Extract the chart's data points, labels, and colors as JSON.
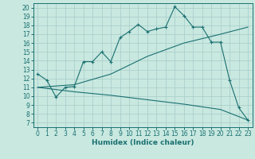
{
  "title": "",
  "xlabel": "Humidex (Indice chaleur)",
  "background_color": "#c8e8e0",
  "grid_color": "#a8ccc8",
  "line_color": "#1a7070",
  "xlim": [
    -0.5,
    23.5
  ],
  "ylim": [
    6.5,
    20.5
  ],
  "xticks": [
    0,
    1,
    2,
    3,
    4,
    5,
    6,
    7,
    8,
    9,
    10,
    11,
    12,
    13,
    14,
    15,
    16,
    17,
    18,
    19,
    20,
    21,
    22,
    23
  ],
  "yticks": [
    7,
    8,
    9,
    10,
    11,
    12,
    13,
    14,
    15,
    16,
    17,
    18,
    19,
    20
  ],
  "line1_x": [
    0,
    1,
    2,
    3,
    4,
    5,
    6,
    7,
    8,
    9,
    10,
    11,
    12,
    13,
    14,
    15,
    16,
    17,
    18,
    19,
    20,
    21,
    22,
    23
  ],
  "line1_y": [
    12.5,
    11.8,
    9.9,
    11.0,
    11.1,
    13.9,
    13.9,
    15.0,
    13.9,
    16.6,
    17.3,
    18.1,
    17.3,
    17.6,
    17.8,
    20.1,
    19.1,
    17.8,
    17.8,
    16.1,
    16.1,
    11.8,
    8.7,
    7.3
  ],
  "line2_x": [
    0,
    4,
    8,
    12,
    16,
    20,
    23
  ],
  "line2_y": [
    11.0,
    11.3,
    12.5,
    14.5,
    16.0,
    17.0,
    17.8
  ],
  "line3_x": [
    0,
    4,
    8,
    12,
    16,
    20,
    23
  ],
  "line3_y": [
    11.0,
    10.5,
    10.1,
    9.6,
    9.1,
    8.5,
    7.3
  ],
  "tick_fontsize": 5.5,
  "xlabel_fontsize": 6.5,
  "xlabel_fontweight": "bold"
}
